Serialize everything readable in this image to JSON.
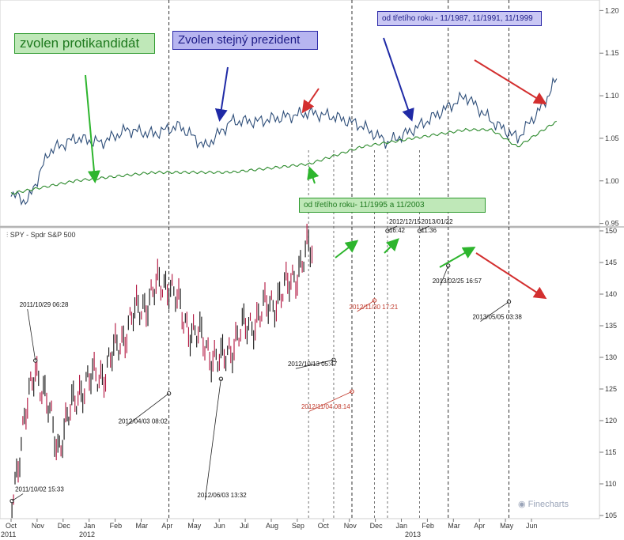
{
  "chart_data": [
    {
      "type": "line",
      "title": "",
      "ylim": [
        0.95,
        1.2
      ],
      "yticks": [
        "0.95",
        "1.00",
        "1.05",
        "1.10",
        "1.15",
        "1.20"
      ],
      "series": [
        {
          "color": "#2f4f7a",
          "x": [
            "2011-10-01",
            "2011-10-20",
            "2011-11-15",
            "2011-12-15",
            "2012-01-15",
            "2012-02-15",
            "2012-03-15",
            "2012-04-15",
            "2012-05-15",
            "2012-06-15",
            "2012-07-15",
            "2012-08-15",
            "2012-09-15",
            "2012-10-15",
            "2012-11-15",
            "2012-12-15",
            "2013-01-15",
            "2013-02-15",
            "2013-03-15",
            "2013-04-15",
            "2013-05-15",
            "2013-06-15",
            "2013-06-30"
          ],
          "values": [
            0.985,
            0.975,
            1.035,
            1.05,
            1.045,
            1.06,
            1.055,
            1.065,
            1.04,
            1.07,
            1.07,
            1.075,
            1.08,
            1.075,
            1.065,
            1.045,
            1.06,
            1.08,
            1.1,
            1.07,
            1.05,
            1.09,
            1.12
          ]
        },
        {
          "color": "#2e8b2e",
          "x": [
            "2011-10-01",
            "2011-12-15",
            "2012-03-15",
            "2012-06-15",
            "2012-09-15",
            "2012-11-15",
            "2013-01-15",
            "2013-03-15",
            "2013-04-15",
            "2013-05-15",
            "2013-06-15",
            "2013-06-30"
          ],
          "values": [
            0.985,
            1.0,
            1.01,
            1.01,
            1.02,
            1.04,
            1.05,
            1.06,
            1.06,
            1.04,
            1.06,
            1.07
          ]
        }
      ]
    },
    {
      "type": "line",
      "series_label": "SPY - Spdr S&P 500",
      "ylim": [
        105,
        150
      ],
      "yticks": [
        "105",
        "110",
        "115",
        "120",
        "125",
        "130",
        "135",
        "140",
        "145",
        "150"
      ],
      "x_months": [
        "Oct",
        "Nov",
        "Dec",
        "Jan",
        "Feb",
        "Mar",
        "Apr",
        "May",
        "Jun",
        "Jul",
        "Aug",
        "Sep",
        "Oct",
        "Nov",
        "Dec",
        "Jan",
        "Feb",
        "Mar",
        "Apr",
        "May",
        "Jun"
      ],
      "x_years": [
        "2011",
        "2012",
        "2013"
      ],
      "series": [
        {
          "x": [
            "2011-10-02",
            "2011-10-29",
            "2011-11-25",
            "2011-12-20",
            "2012-01-20",
            "2012-02-20",
            "2012-03-20",
            "2012-04-03",
            "2012-04-20",
            "2012-05-20",
            "2012-06-03",
            "2012-06-20",
            "2012-07-20",
            "2012-08-20",
            "2012-09-14",
            "2012-09-20"
          ],
          "values": [
            108,
            129,
            116,
            125,
            128,
            136,
            141,
            142,
            136,
            131,
            129,
            133,
            137,
            141,
            147,
            146
          ]
        }
      ],
      "annotations": [
        {
          "label": "2011/10/02 15:33",
          "date": "2011-10-02",
          "value": 107.3
        },
        {
          "label": "2011/10/29 06:28",
          "date": "2011-10-29",
          "value": 129.5
        },
        {
          "label": "2012/04/03 08:02",
          "date": "2012-04-03",
          "value": 124.3
        },
        {
          "label": "2012/06/03 13:32",
          "date": "2012-06-03",
          "value": 126.6
        },
        {
          "label": "2012/10/13 05:47",
          "date": "2012-10-13",
          "value": 129.6
        },
        {
          "label": "2012/11/04 08:14",
          "date": "2012-11-04",
          "value": 124.6,
          "color": "#c0392b"
        },
        {
          "label": "2012/11/30 17:21",
          "date": "2012-11-30",
          "value": 139.0,
          "color": "#c0392b"
        },
        {
          "label": "2012/12/15 16:42",
          "date": "2012-12-15",
          "value": 150.0
        },
        {
          "label": "2013/01/22 11:36",
          "date": "2013-01-22",
          "value": 150.0
        },
        {
          "label": "2013/02/25 16:57",
          "date": "2013-02-25",
          "value": 144.5
        },
        {
          "label": "2013/05/05 03:38",
          "date": "2013-05-05",
          "value": 138.8
        }
      ]
    }
  ],
  "notes": {
    "zvolen_protikandidat": "zvolen protikandidát",
    "zvolen_stejny": "Zvolen stejný prezident",
    "od_tretiho_roku_1987": "od třetího roku - 11/1987, 11/1991, 11/1999",
    "od_tretiho_roku_1995": "od třetího roku- 11/1995 a 11/2003"
  },
  "legend_label": "SPY - Spdr S&P 500",
  "logo_text": "Finecharts",
  "colors": {
    "blue_line": "#2f4f7a",
    "green_line": "#2e8b2e",
    "arrow_green": "#2db52d",
    "arrow_red": "#d32f2f",
    "arrow_blue": "#1f2aa6"
  }
}
